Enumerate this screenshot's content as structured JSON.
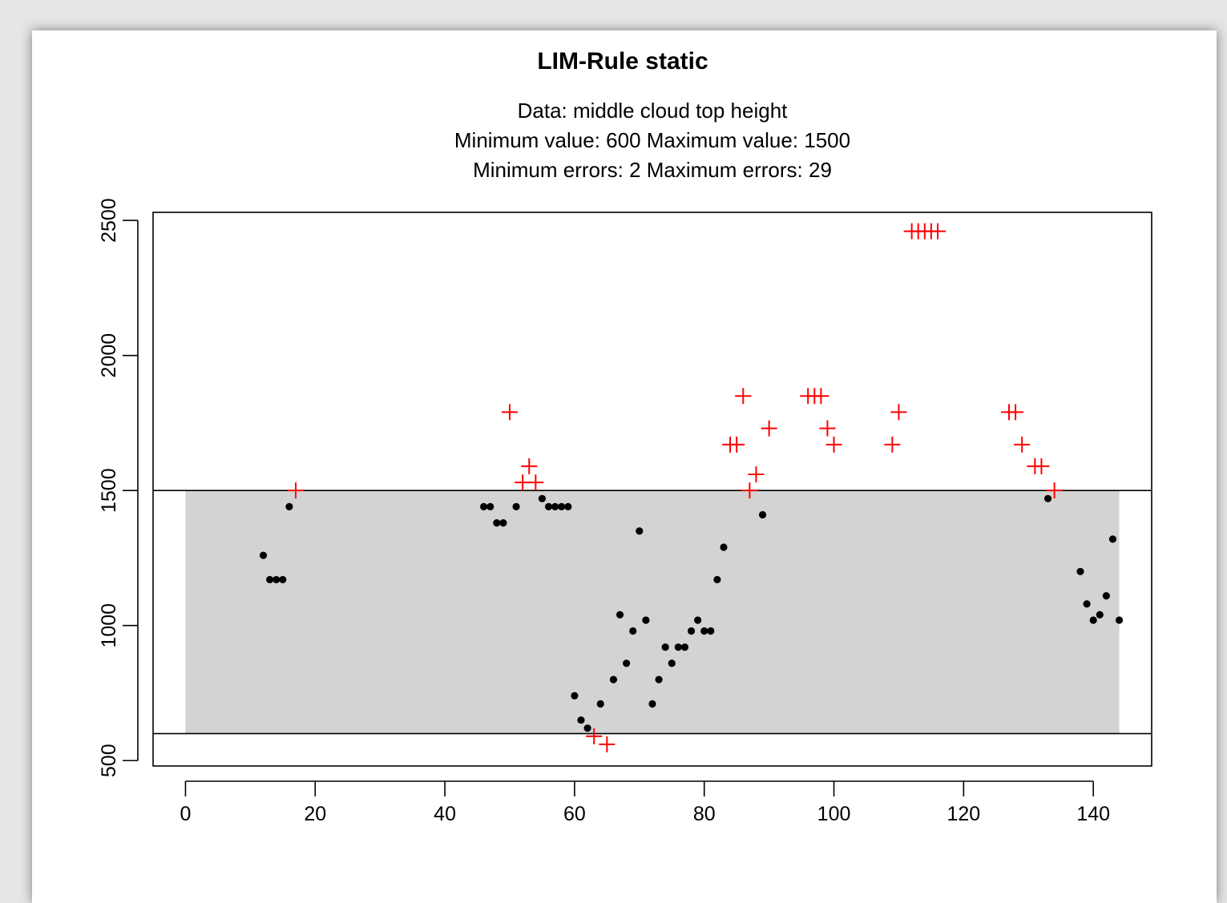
{
  "chart_data": {
    "type": "scatter",
    "title": "LIM-Rule static",
    "subtitle_lines": [
      "Data: middle cloud top height",
      "Minimum value:  600   Maximum value:  1500",
      "Minimum errors:  2   Maximum errors:  29"
    ],
    "xlabel": "",
    "ylabel": "",
    "xlim": [
      -5,
      149
    ],
    "ylim": [
      480,
      2530
    ],
    "x_ticks": [
      0,
      20,
      40,
      60,
      80,
      100,
      120,
      140
    ],
    "y_ticks": [
      500,
      1000,
      1500,
      2000,
      2500
    ],
    "grid": false,
    "valid_range": {
      "min": 600,
      "max": 1500,
      "x_start": 0,
      "x_end": 144,
      "color": "#d3d3d3"
    },
    "series": [
      {
        "marker": "dot",
        "color": "#000000",
        "points": [
          [
            12,
            1260
          ],
          [
            13,
            1170
          ],
          [
            14,
            1170
          ],
          [
            15,
            1170
          ],
          [
            16,
            1440
          ],
          [
            46,
            1440
          ],
          [
            47,
            1440
          ],
          [
            48,
            1380
          ],
          [
            49,
            1380
          ],
          [
            51,
            1440
          ],
          [
            55,
            1470
          ],
          [
            56,
            1440
          ],
          [
            57,
            1440
          ],
          [
            58,
            1440
          ],
          [
            59,
            1440
          ],
          [
            60,
            740
          ],
          [
            61,
            650
          ],
          [
            62,
            620
          ],
          [
            64,
            710
          ],
          [
            66,
            800
          ],
          [
            67,
            1040
          ],
          [
            68,
            860
          ],
          [
            69,
            980
          ],
          [
            70,
            1350
          ],
          [
            71,
            1020
          ],
          [
            72,
            710
          ],
          [
            73,
            800
          ],
          [
            74,
            920
          ],
          [
            75,
            860
          ],
          [
            76,
            920
          ],
          [
            77,
            920
          ],
          [
            78,
            980
          ],
          [
            79,
            1020
          ],
          [
            80,
            980
          ],
          [
            81,
            980
          ],
          [
            82,
            1170
          ],
          [
            83,
            1290
          ],
          [
            89,
            1410
          ],
          [
            133,
            1470
          ],
          [
            138,
            1200
          ],
          [
            139,
            1080
          ],
          [
            140,
            1020
          ],
          [
            141,
            1040
          ],
          [
            142,
            1110
          ],
          [
            143,
            1320
          ],
          [
            144,
            1020
          ]
        ]
      },
      {
        "marker": "plus",
        "color": "#ff0000",
        "points": [
          [
            17,
            1500
          ],
          [
            50,
            1790
          ],
          [
            52,
            1530
          ],
          [
            53,
            1590
          ],
          [
            54,
            1530
          ],
          [
            63,
            590
          ],
          [
            65,
            560
          ],
          [
            84,
            1670
          ],
          [
            85,
            1670
          ],
          [
            86,
            1850
          ],
          [
            87,
            1500
          ],
          [
            88,
            1560
          ],
          [
            90,
            1730
          ],
          [
            96,
            1850
          ],
          [
            97,
            1850
          ],
          [
            98,
            1850
          ],
          [
            99,
            1730
          ],
          [
            100,
            1670
          ],
          [
            109,
            1670
          ],
          [
            110,
            1790
          ],
          [
            112,
            2460
          ],
          [
            113,
            2460
          ],
          [
            114,
            2460
          ],
          [
            115,
            2460
          ],
          [
            116,
            2460
          ],
          [
            127,
            1790
          ],
          [
            128,
            1790
          ],
          [
            129,
            1670
          ],
          [
            131,
            1590
          ],
          [
            132,
            1590
          ],
          [
            134,
            1500
          ]
        ]
      }
    ]
  }
}
